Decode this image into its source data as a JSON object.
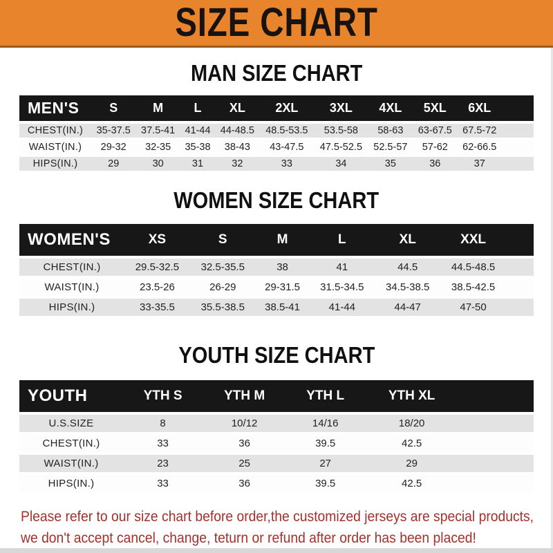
{
  "banner": {
    "title": "SIZE CHART"
  },
  "colors": {
    "banner_bg": "#E8852C",
    "banner_border": "#9C5A1D",
    "header_bar": "#171717",
    "row_shade": "#E3E3E3",
    "disclaimer_text": "#A5302B"
  },
  "sections": [
    {
      "heading": "MAN SIZE CHART",
      "table": {
        "label": "MEN'S",
        "columns": [
          "S",
          "M",
          "L",
          "XL",
          "2XL",
          "3XL",
          "4XL",
          "5XL",
          "6XL"
        ],
        "rows": [
          {
            "label": "CHEST(IN.)",
            "values": [
              "35-37.5",
              "37.5-41",
              "41-44",
              "44-48.5",
              "48.5-53.5",
              "53.5-58",
              "58-63",
              "63-67.5",
              "67.5-72"
            ]
          },
          {
            "label": "WAIST(IN.)",
            "values": [
              "29-32",
              "32-35",
              "35-38",
              "38-43",
              "43-47.5",
              "47.5-52.5",
              "52.5-57",
              "57-62",
              "62-66.5"
            ]
          },
          {
            "label": "HIPS(IN.)",
            "values": [
              "29",
              "30",
              "31",
              "32",
              "33",
              "34",
              "35",
              "36",
              "37"
            ]
          }
        ]
      }
    },
    {
      "heading": "WOMEN SIZE CHART",
      "table": {
        "label": "WOMEN'S",
        "columns": [
          "XS",
          "S",
          "M",
          "L",
          "XL",
          "XXL"
        ],
        "rows": [
          {
            "label": "CHEST(IN.)",
            "values": [
              "29.5-32.5",
              "32.5-35.5",
              "38",
              "41",
              "44.5",
              "44.5-48.5"
            ]
          },
          {
            "label": "WAIST(IN.)",
            "values": [
              "23.5-26",
              "26-29",
              "29-31.5",
              "31.5-34.5",
              "34.5-38.5",
              "38.5-42.5"
            ]
          },
          {
            "label": "HIPS(IN.)",
            "values": [
              "33-35.5",
              "35.5-38.5",
              "38.5-41",
              "41-44",
              "44-47",
              "47-50"
            ]
          }
        ]
      }
    },
    {
      "heading": "YOUTH SIZE CHART",
      "table": {
        "label": "YOUTH",
        "columns": [
          "YTH S",
          "YTH M",
          "YTH L",
          "YTH XL"
        ],
        "rows": [
          {
            "label": "U.S.SIZE",
            "values": [
              "8",
              "10/12",
              "14/16",
              "18/20"
            ]
          },
          {
            "label": "CHEST(IN.)",
            "values": [
              "33",
              "36",
              "39.5",
              "42.5"
            ]
          },
          {
            "label": "WAIST(IN.)",
            "values": [
              "23",
              "25",
              "27",
              "29"
            ]
          },
          {
            "label": "HIPS(IN.)",
            "values": [
              "33",
              "36",
              "39.5",
              "42.5"
            ]
          }
        ]
      }
    }
  ],
  "disclaimer": {
    "line1": "Please refer to our size chart before order,the customized jerseys are special products,",
    "line2": "we don't accept cancel, change, teturn or refund after order has been placed!"
  }
}
